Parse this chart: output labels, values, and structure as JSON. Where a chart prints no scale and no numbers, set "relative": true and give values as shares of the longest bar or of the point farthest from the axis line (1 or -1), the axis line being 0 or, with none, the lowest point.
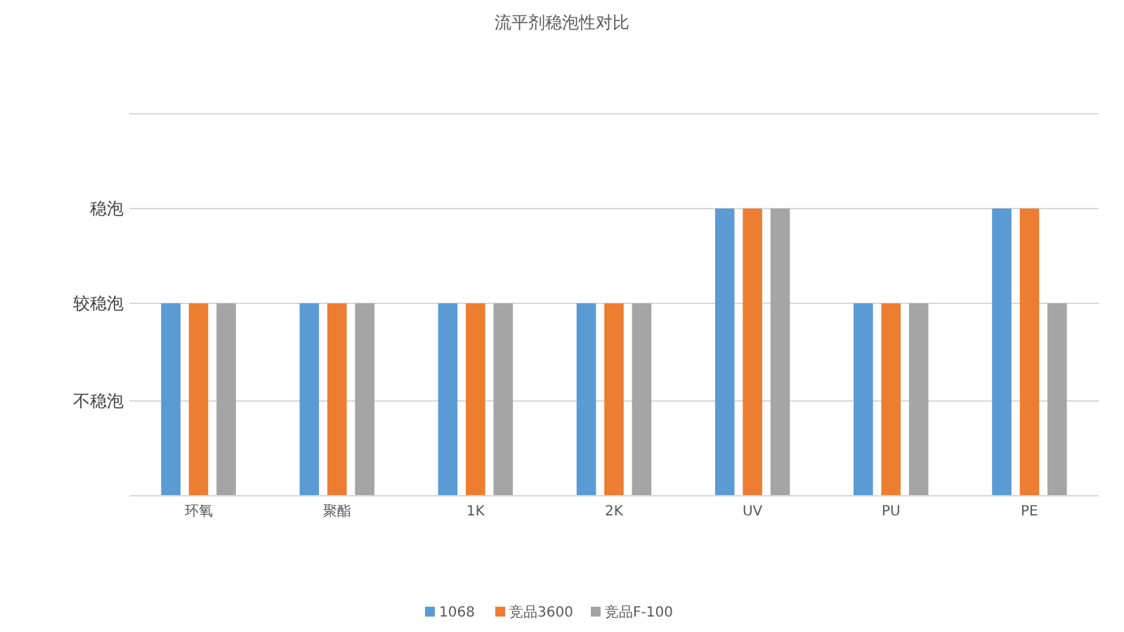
{
  "chart_data": {
    "type": "bar",
    "title": "流平剂稳泡性对比",
    "categories": [
      "环氧",
      "聚酯",
      "1K",
      "2K",
      "UV",
      "PU",
      "PE"
    ],
    "series": [
      {
        "name": "1068",
        "color": "#5b9bd5",
        "values": [
          0.67,
          0.67,
          0.67,
          0.67,
          1,
          0.67,
          1
        ]
      },
      {
        "name": "竞品3600",
        "color": "#ed7d31",
        "values": [
          0.67,
          0.67,
          0.67,
          0.67,
          1,
          0.67,
          1
        ]
      },
      {
        "name": "竞品F-100",
        "color": "#a5a5a5",
        "values": [
          0.67,
          0.67,
          0.67,
          0.67,
          1,
          0.67,
          0.67
        ]
      }
    ],
    "relative": true,
    "ref_lines": [
      {
        "axis": "y",
        "value": 0.33,
        "label": "不稳泡",
        "color": "#d9d9d9"
      },
      {
        "axis": "y",
        "value": 0.67,
        "label": "较稳泡",
        "color": "#d9d9d9"
      },
      {
        "axis": "y",
        "value": 1,
        "label": "稳泡",
        "color": "#d9d9d9"
      },
      {
        "axis": "y",
        "value": 1.33,
        "label": null,
        "color": "#d9d9d9"
      }
    ],
    "legend": "bottom"
  }
}
